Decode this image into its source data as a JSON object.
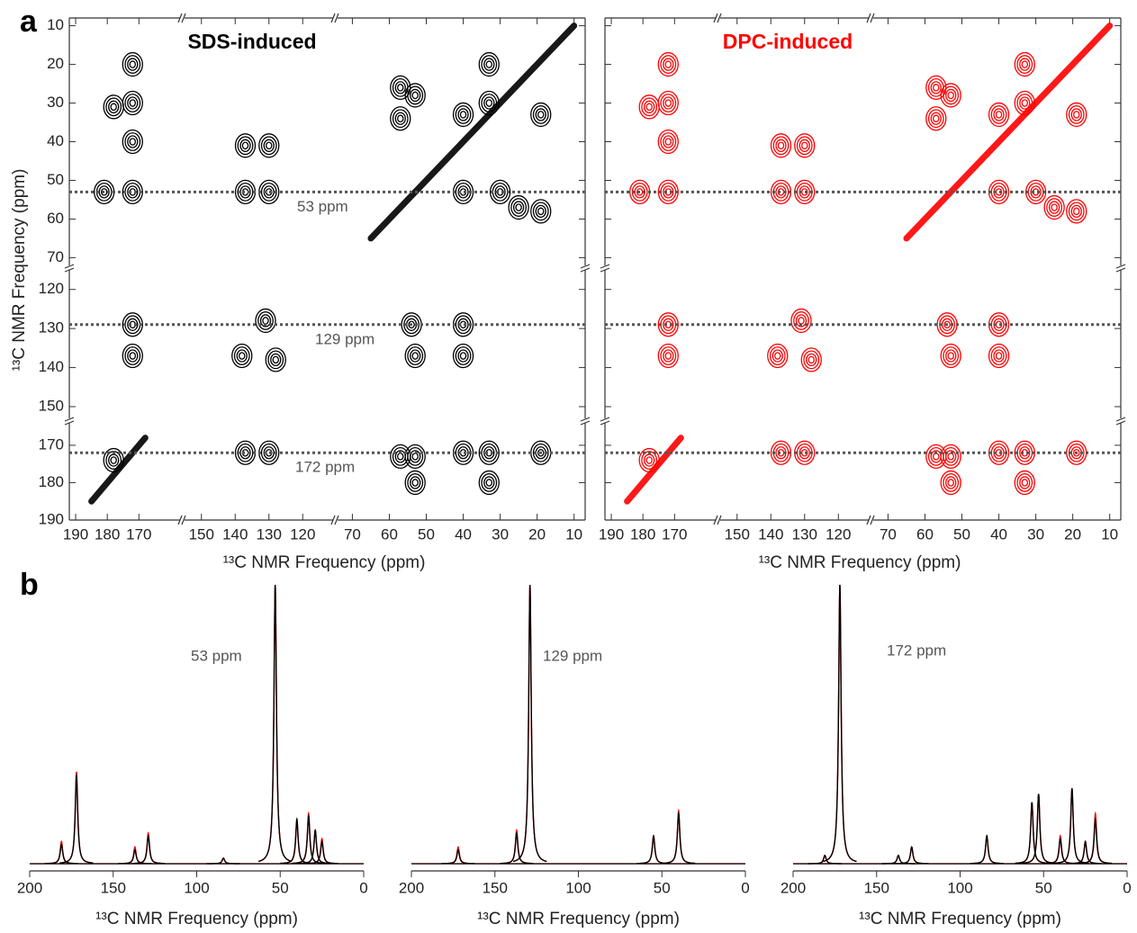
{
  "panels": [
    "a",
    "b"
  ],
  "chart_data": [
    {
      "type": "contour",
      "title": "SDS-induced",
      "color": "#000000",
      "xlabel": "¹³C NMR Frequency (ppm)",
      "ylabel": "¹³C NMR Frequency (ppm)",
      "xsegments": [
        {
          "xlim": [
            192,
            157
          ],
          "xticks": [
            190,
            180,
            170
          ]
        },
        {
          "xlim": [
            155,
            111
          ],
          "xticks": [
            150,
            140,
            130,
            120
          ]
        },
        {
          "xlim": [
            74,
            7
          ],
          "xticks": [
            70,
            60,
            50,
            40,
            30,
            20,
            10
          ]
        }
      ],
      "ysegments": [
        {
          "ylim": [
            8,
            72
          ],
          "yticks": [
            10,
            20,
            30,
            40,
            50,
            60,
            70
          ]
        },
        {
          "ylim": [
            115,
            153
          ],
          "yticks": [
            120,
            130,
            140,
            150
          ]
        },
        {
          "ylim": [
            164,
            190
          ],
          "yticks": [
            170,
            180,
            190
          ]
        }
      ],
      "hlines": [
        53,
        129,
        172
      ],
      "hline_labels": [
        "53 ppm",
        "129 ppm",
        "172 ppm"
      ],
      "diagonal": true,
      "peaks": {
        "x": [
          178,
          172,
          172,
          172,
          181,
          172,
          137,
          130,
          137,
          130,
          57,
          57,
          53,
          40,
          33,
          33,
          19,
          40,
          30,
          25,
          19,
          172,
          172,
          131,
          128,
          138,
          54,
          53,
          40,
          40,
          178,
          137,
          130,
          57,
          53,
          40,
          33,
          19,
          33,
          53
        ],
        "y": [
          31,
          20,
          30,
          40,
          53,
          53,
          41,
          41,
          53,
          53,
          26,
          34,
          28,
          33,
          20,
          30,
          33,
          53,
          53,
          57,
          58,
          129,
          137,
          128,
          138,
          137,
          129,
          137,
          129,
          137,
          174,
          172,
          172,
          173,
          173,
          172,
          172,
          172,
          180,
          180
        ]
      }
    },
    {
      "type": "contour",
      "title": "DPC-induced",
      "color": "#ff0000",
      "xlabel": "¹³C NMR Frequency (ppm)",
      "xsegments": [
        {
          "xlim": [
            192,
            157
          ],
          "xticks": [
            190,
            180,
            170
          ]
        },
        {
          "xlim": [
            155,
            111
          ],
          "xticks": [
            150,
            140,
            130,
            120
          ]
        },
        {
          "xlim": [
            74,
            7
          ],
          "xticks": [
            70,
            60,
            50,
            40,
            30,
            20,
            10
          ]
        }
      ],
      "ysegments": [
        {
          "ylim": [
            8,
            72
          ],
          "yticks": [
            10,
            20,
            30,
            40,
            50,
            60,
            70
          ]
        },
        {
          "ylim": [
            115,
            153
          ],
          "yticks": [
            120,
            130,
            140,
            150
          ]
        },
        {
          "ylim": [
            164,
            190
          ],
          "yticks": [
            170,
            180,
            190
          ]
        }
      ],
      "hlines": [
        53,
        129,
        172
      ],
      "diagonal": true,
      "peaks": {
        "x": [
          178,
          172,
          172,
          172,
          181,
          172,
          137,
          130,
          137,
          130,
          57,
          57,
          53,
          40,
          33,
          33,
          19,
          40,
          30,
          25,
          19,
          172,
          172,
          131,
          128,
          138,
          54,
          53,
          40,
          40,
          178,
          137,
          130,
          57,
          53,
          40,
          33,
          19,
          33,
          53
        ],
        "y": [
          31,
          20,
          30,
          40,
          53,
          53,
          41,
          41,
          53,
          53,
          26,
          34,
          28,
          33,
          20,
          30,
          33,
          53,
          53,
          57,
          58,
          129,
          137,
          128,
          138,
          137,
          129,
          137,
          129,
          137,
          174,
          172,
          172,
          173,
          173,
          172,
          172,
          172,
          180,
          180
        ]
      }
    },
    {
      "type": "line",
      "xlabel": "¹³C NMR Frequency (ppm)",
      "annotation": "53 ppm",
      "xlim": [
        200,
        0
      ],
      "xticks": [
        200,
        150,
        100,
        50,
        0
      ],
      "x": [
        181,
        172,
        137,
        129,
        84,
        53,
        40,
        33,
        29,
        25
      ],
      "series": [
        {
          "color": "#ff0000",
          "values": [
            8,
            33,
            6,
            11,
            2,
            100,
            15,
            18,
            12,
            9
          ]
        },
        {
          "color": "#000000",
          "values": [
            7,
            32,
            5,
            10,
            2,
            100,
            16,
            17,
            12,
            8
          ]
        }
      ]
    },
    {
      "type": "line",
      "xlabel": "¹³C NMR Frequency (ppm)",
      "annotation": "129 ppm",
      "xlim": [
        200,
        0
      ],
      "xticks": [
        200,
        150,
        100,
        50,
        0
      ],
      "x": [
        172,
        137,
        129,
        55,
        40
      ],
      "series": [
        {
          "color": "#ff0000",
          "values": [
            6,
            12,
            100,
            10,
            19
          ]
        },
        {
          "color": "#000000",
          "values": [
            5,
            11,
            100,
            10,
            18
          ]
        }
      ]
    },
    {
      "type": "line",
      "xlabel": "¹³C NMR Frequency (ppm)",
      "annotation": "172 ppm",
      "xlim": [
        200,
        0
      ],
      "xticks": [
        200,
        150,
        100,
        50,
        0
      ],
      "x": [
        181,
        172,
        137,
        129,
        84,
        57,
        53,
        40,
        33,
        25,
        19
      ],
      "series": [
        {
          "color": "#ff0000",
          "values": [
            3,
            100,
            3,
            6,
            10,
            22,
            25,
            10,
            27,
            8,
            18
          ]
        },
        {
          "color": "#000000",
          "values": [
            3,
            100,
            3,
            6,
            10,
            22,
            25,
            9,
            27,
            8,
            16
          ]
        }
      ]
    }
  ]
}
